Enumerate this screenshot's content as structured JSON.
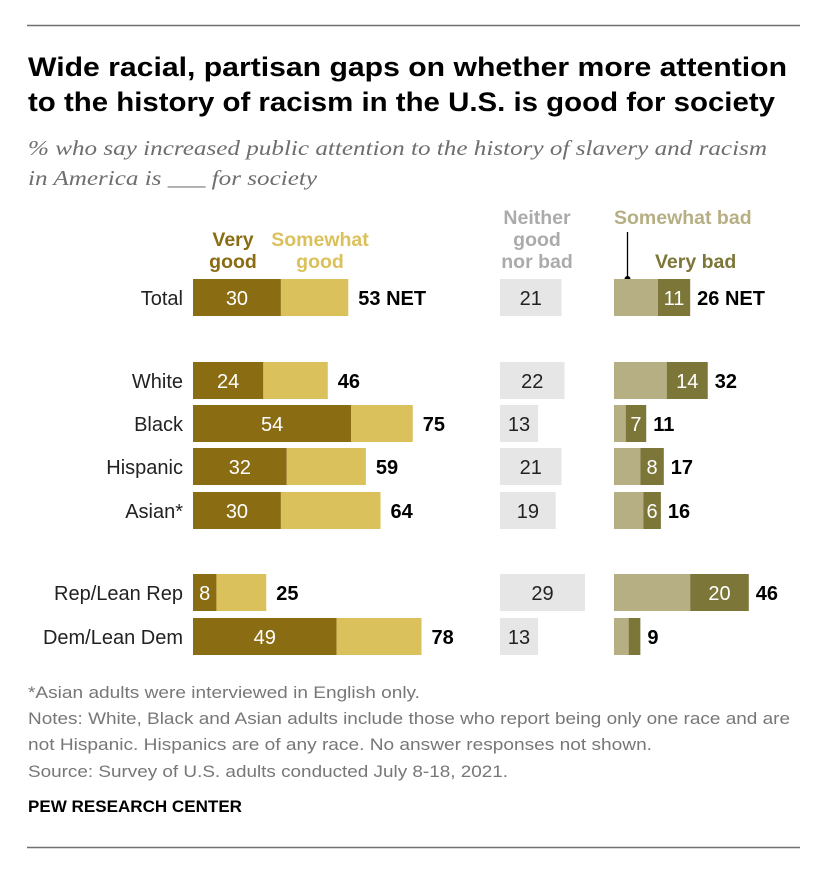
{
  "header": {
    "title_line1": "Wide racial, partisan gaps on whether more attention",
    "title_line2": "to the history of racism in the U.S. is good for society",
    "subtitle_line1": "% who say increased public attention to the history of slavery and racism",
    "subtitle_line2": "in America is ___ for society"
  },
  "chart_data": {
    "type": "bar",
    "orientation": "horizontal",
    "layout": "stacked-diverging",
    "title": "Wide racial, partisan gaps on whether more attention to the history of racism in the U.S. is good for society",
    "subtitle": "% who say increased public attention to the history of slavery and racism in America is ___ for society",
    "unit": "%",
    "xlabel": "",
    "ylabel": "",
    "grid": false,
    "categories": [
      "Total",
      "White",
      "Black",
      "Hispanic",
      "Asian*",
      "Rep/Lean Rep",
      "Dem/Lean Dem"
    ],
    "groups": [
      [
        "Total"
      ],
      [
        "White",
        "Black",
        "Hispanic",
        "Asian*"
      ],
      [
        "Rep/Lean Rep",
        "Dem/Lean Dem"
      ]
    ],
    "series": [
      {
        "name": "Very good",
        "color": "#8a6c12",
        "label_text_color": "#ffffff",
        "values": [
          30,
          24,
          54,
          32,
          30,
          8,
          49
        ],
        "labels": [
          "30",
          "24",
          "54",
          "32",
          "30",
          "8",
          "49"
        ]
      },
      {
        "name": "Somewhat good",
        "color": "#dbc15b",
        "label_text_color": "#ffffff",
        "values": [
          23,
          22,
          21,
          27,
          34,
          17,
          29
        ],
        "labels": [
          "",
          "",
          "",
          "",
          "",
          "",
          ""
        ]
      },
      {
        "name": "Neither good nor bad",
        "color": "#e6e6e6",
        "label_text_color": "#222222",
        "values": [
          21,
          22,
          13,
          21,
          19,
          29,
          13
        ],
        "labels": [
          "21",
          "22",
          "13",
          "21",
          "19",
          "29",
          "13"
        ]
      },
      {
        "name": "Somewhat bad",
        "color": "#b7af84",
        "label_text_color": "#ffffff",
        "values": [
          15,
          18,
          4,
          9,
          10,
          26,
          5
        ],
        "labels": [
          "",
          "",
          "",
          "",
          "",
          "",
          ""
        ]
      },
      {
        "name": "Very bad",
        "color": "#7c7739",
        "label_text_color": "#ffffff",
        "values": [
          11,
          14,
          7,
          8,
          6,
          20,
          4
        ],
        "labels": [
          "11",
          "14",
          "7",
          "8",
          "6",
          "20",
          ""
        ]
      }
    ],
    "net_good": {
      "values": [
        53,
        46,
        75,
        59,
        64,
        25,
        78
      ],
      "labels": [
        "53 NET",
        "46",
        "75",
        "59",
        "64",
        "25",
        "78"
      ]
    },
    "net_bad": {
      "values": [
        26,
        32,
        11,
        17,
        16,
        46,
        9
      ],
      "labels": [
        "26 NET",
        "32",
        "11",
        "17",
        "16",
        "46",
        "9"
      ]
    },
    "legend": [
      {
        "series": "Very good",
        "lines": [
          "Very",
          "good"
        ],
        "color": "#8a6c12"
      },
      {
        "series": "Somewhat good",
        "lines": [
          "Somewhat",
          "good"
        ],
        "color": "#dbc15b"
      },
      {
        "series": "Neither good nor bad",
        "lines": [
          "Neither",
          "good",
          "nor bad"
        ],
        "color": "#ababab"
      },
      {
        "series": "Somewhat bad",
        "lines": [
          "Somewhat bad"
        ],
        "color": "#b7af84"
      },
      {
        "series": "Very bad",
        "lines": [
          "Very bad"
        ],
        "color": "#7c7739"
      }
    ],
    "legend_placement": "top, above each column"
  },
  "footer": {
    "note_asian": "*Asian adults were interviewed in English only.",
    "notes_line1": "Notes: White, Black and Asian adults include those who report being only one race and are",
    "notes_line2": "not Hispanic. Hispanics are of any race. No answer responses not shown.",
    "source": "Source: Survey of U.S. adults conducted July 8-18, 2021.",
    "brand": "PEW RESEARCH CENTER"
  }
}
